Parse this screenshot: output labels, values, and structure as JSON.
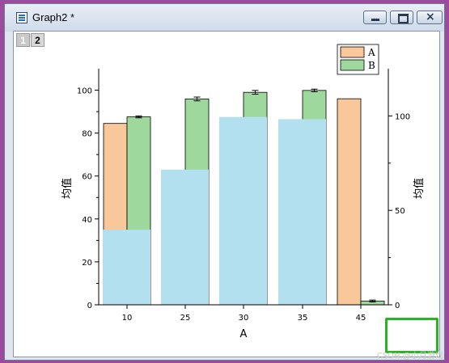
{
  "window": {
    "title": "Graph2 *",
    "icon": "graph-window-icon",
    "controls": [
      "minimize-icon",
      "maximize-icon",
      "close-icon"
    ]
  },
  "layers": [
    "1",
    "2"
  ],
  "watermark": "CSDN @小月游戏",
  "chart_data": {
    "type": "bar",
    "categories": [
      "10",
      "25",
      "30",
      "35",
      "45"
    ],
    "xlabel": "A",
    "ylabel_left": "均值",
    "ylabel_right": "均值",
    "yticks_left": [
      "0",
      "20",
      "40",
      "60",
      "80",
      "100"
    ],
    "yticks_right": [
      "0",
      "50",
      "100"
    ],
    "ylim_left": [
      0,
      110
    ],
    "ylim_right": [
      0,
      125
    ],
    "legend": {
      "position": "top-right",
      "entries": [
        "A",
        "B"
      ]
    },
    "series": [
      {
        "name": "A",
        "axis": "left",
        "color": "#f8c89a",
        "values": [
          84.5,
          null,
          null,
          null,
          96
        ]
      },
      {
        "name": "B",
        "axis": "right",
        "color": "#9ed89c",
        "values": [
          99.5,
          109,
          112.5,
          113.5,
          2
        ],
        "errors": [
          0.5,
          1,
          1,
          0.7,
          0.5
        ]
      },
      {
        "axis": "left",
        "color": "#b3e0ef",
        "values": [
          35,
          63,
          87.5,
          86.5,
          null
        ]
      }
    ]
  }
}
